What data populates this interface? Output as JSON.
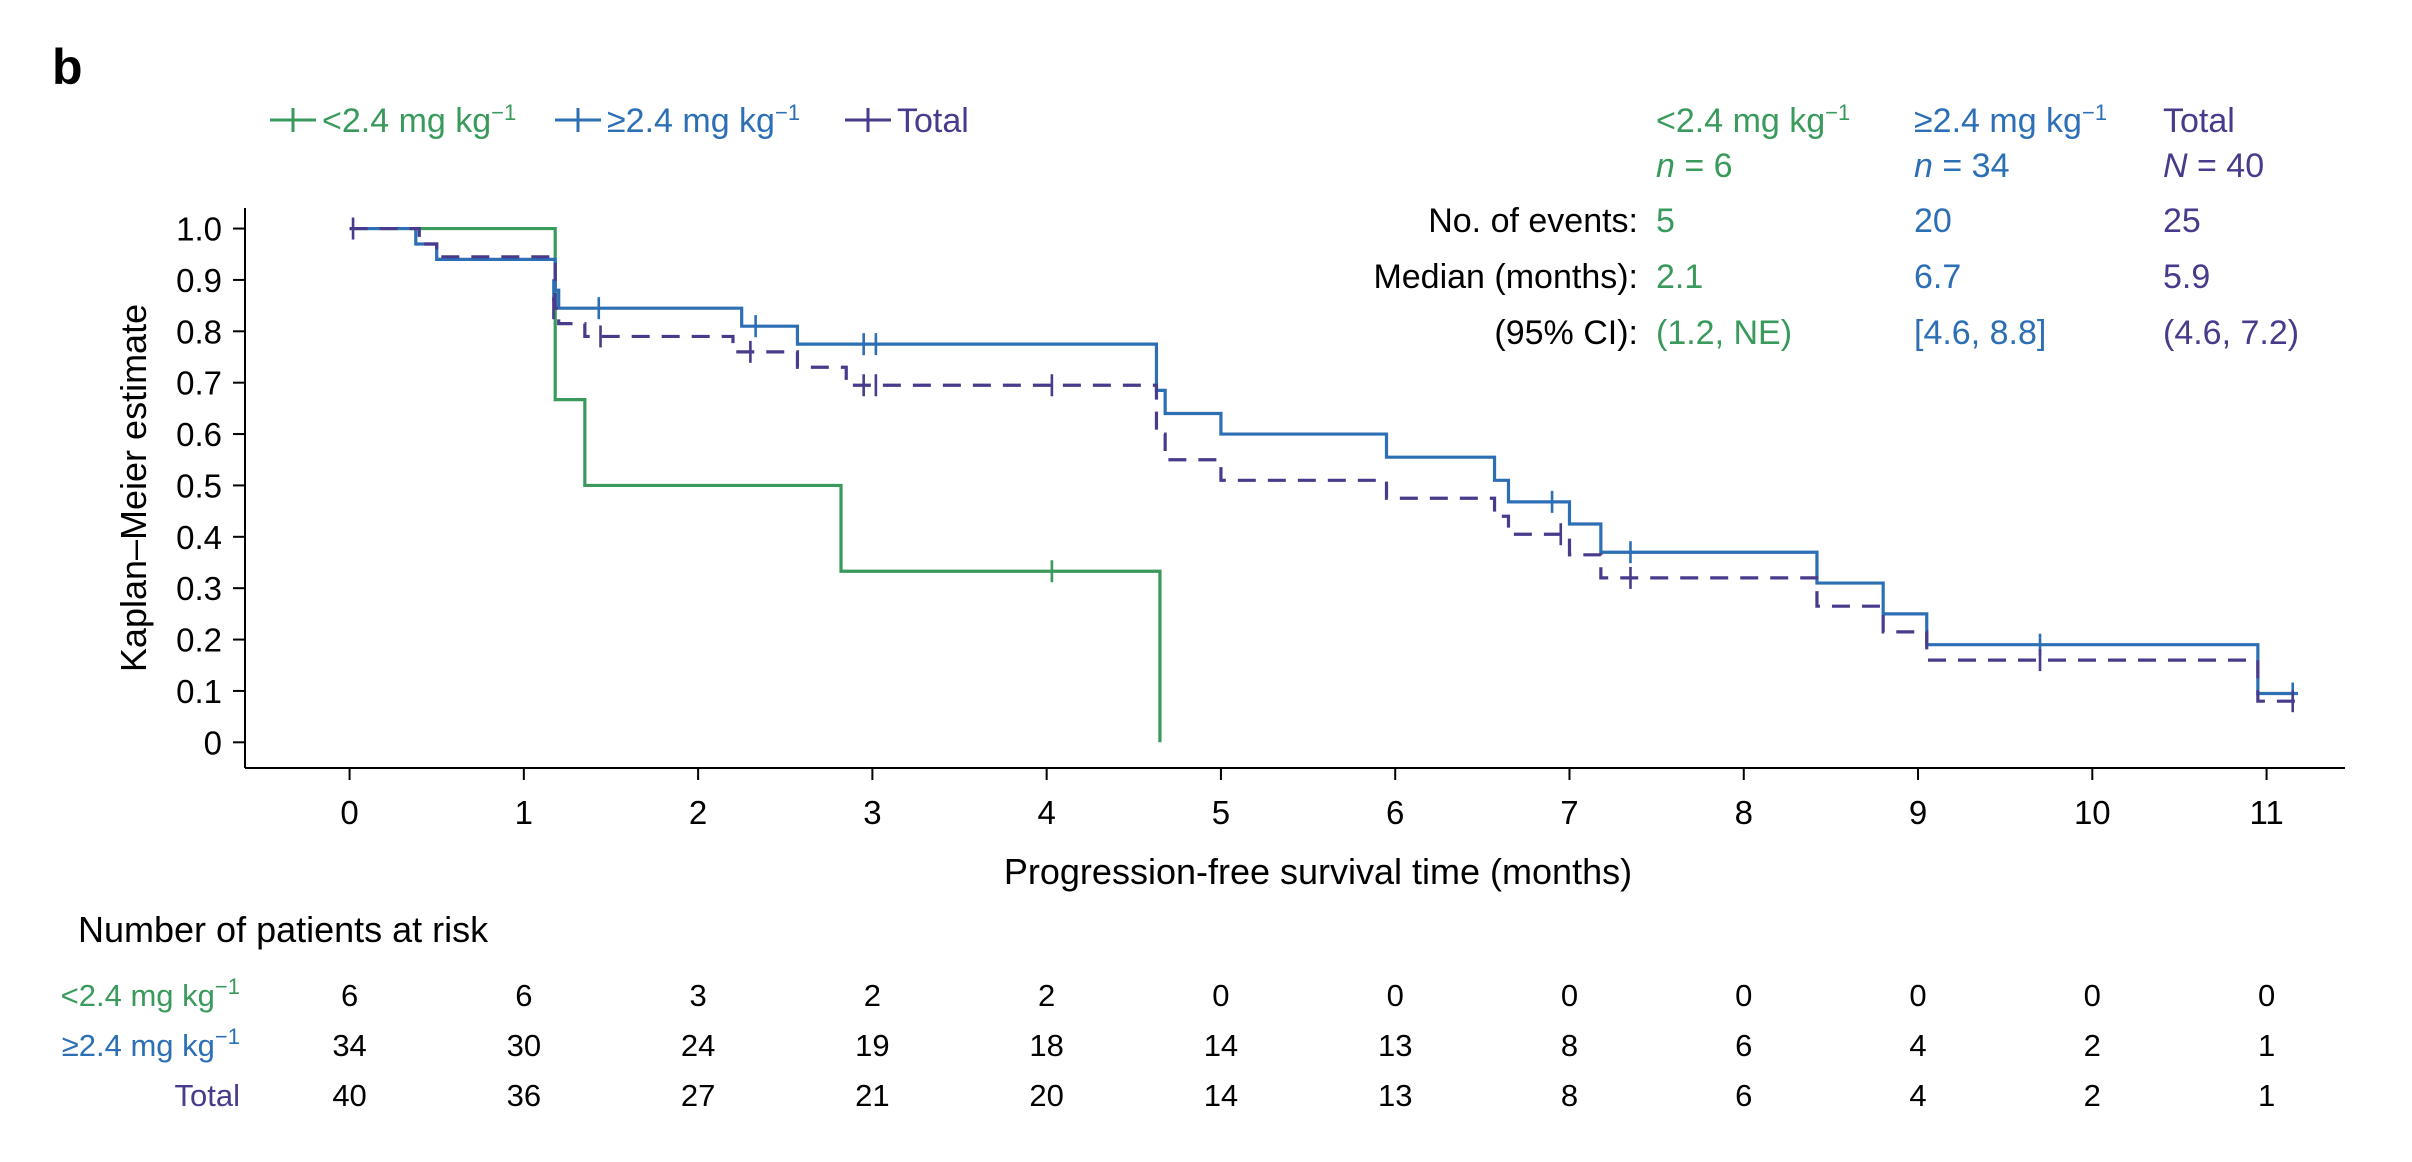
{
  "panel_label": "b",
  "colors": {
    "low": "#3a9a5c",
    "high": "#2c6fb5",
    "total": "#4a3a8c",
    "axis": "#000000"
  },
  "chart_data": {
    "type": "line",
    "subtype": "kaplan-meier",
    "xlabel": "Progression-free survival time (months)",
    "ylabel": "Kaplan–Meier estimate",
    "xlim": [
      -0.6,
      11.45
    ],
    "ylim": [
      -0.05,
      1.04
    ],
    "xticks": [
      0,
      1,
      2,
      3,
      4,
      5,
      6,
      7,
      8,
      9,
      10,
      11
    ],
    "yticks": [
      {
        "value": 1.0,
        "label": "1.0"
      },
      {
        "value": 0.9,
        "label": "0.9"
      },
      {
        "value": 0.8,
        "label": "0.8"
      },
      {
        "value": 0.7,
        "label": "0.7"
      },
      {
        "value": 0.6,
        "label": "0.6"
      },
      {
        "value": 0.5,
        "label": "0.5"
      },
      {
        "value": 0.4,
        "label": "0.4"
      },
      {
        "value": 0.3,
        "label": "0.3"
      },
      {
        "value": 0.2,
        "label": "0.2"
      },
      {
        "value": 0.1,
        "label": "0.1"
      },
      {
        "value": 0.0,
        "label": "0"
      }
    ],
    "grid": false,
    "legend": {
      "position": "top-left",
      "items": [
        {
          "key": "low",
          "label": "<2.4 mg kg",
          "sup": "−1"
        },
        {
          "key": "high",
          "label": "≥2.4 mg kg",
          "sup": "−1"
        },
        {
          "key": "total",
          "label": "Total",
          "sup": ""
        }
      ]
    },
    "series": [
      {
        "key": "low",
        "name": "<2.4 mg kg−1",
        "dashed": false,
        "steps": [
          {
            "x": 0,
            "y": 1.0
          },
          {
            "x": 1.18,
            "y": 0.667
          },
          {
            "x": 1.35,
            "y": 0.5
          },
          {
            "x": 2.82,
            "y": 0.333
          },
          {
            "x": 4.65,
            "y": 0.0
          }
        ],
        "end_x": 4.65,
        "censors": [
          {
            "x": 4.03,
            "y": 0.333
          }
        ]
      },
      {
        "key": "high",
        "name": "≥2.4 mg kg−1",
        "dashed": false,
        "steps": [
          {
            "x": 0,
            "y": 1.0
          },
          {
            "x": 0.38,
            "y": 0.97
          },
          {
            "x": 0.5,
            "y": 0.94
          },
          {
            "x": 1.18,
            "y": 0.88
          },
          {
            "x": 1.2,
            "y": 0.845
          },
          {
            "x": 2.25,
            "y": 0.81
          },
          {
            "x": 2.57,
            "y": 0.775
          },
          {
            "x": 4.63,
            "y": 0.685
          },
          {
            "x": 4.68,
            "y": 0.64
          },
          {
            "x": 5.0,
            "y": 0.6
          },
          {
            "x": 5.95,
            "y": 0.555
          },
          {
            "x": 6.57,
            "y": 0.51
          },
          {
            "x": 6.65,
            "y": 0.468
          },
          {
            "x": 7.0,
            "y": 0.425
          },
          {
            "x": 7.18,
            "y": 0.37
          },
          {
            "x": 8.42,
            "y": 0.31
          },
          {
            "x": 8.8,
            "y": 0.25
          },
          {
            "x": 9.05,
            "y": 0.19
          },
          {
            "x": 10.95,
            "y": 0.095
          }
        ],
        "end_x": 11.18,
        "censors": [
          {
            "x": 1.17,
            "y": 0.88
          },
          {
            "x": 1.43,
            "y": 0.845
          },
          {
            "x": 2.33,
            "y": 0.81
          },
          {
            "x": 2.95,
            "y": 0.775
          },
          {
            "x": 3.02,
            "y": 0.775
          },
          {
            "x": 6.9,
            "y": 0.468
          },
          {
            "x": 7.35,
            "y": 0.37
          },
          {
            "x": 9.7,
            "y": 0.19
          },
          {
            "x": 11.15,
            "y": 0.095
          }
        ]
      },
      {
        "key": "total",
        "name": "Total",
        "dashed": true,
        "steps": [
          {
            "x": 0,
            "y": 1.0
          },
          {
            "x": 0.4,
            "y": 0.97
          },
          {
            "x": 0.5,
            "y": 0.945
          },
          {
            "x": 1.18,
            "y": 0.845
          },
          {
            "x": 1.2,
            "y": 0.815
          },
          {
            "x": 1.35,
            "y": 0.79
          },
          {
            "x": 2.2,
            "y": 0.76
          },
          {
            "x": 2.57,
            "y": 0.73
          },
          {
            "x": 2.85,
            "y": 0.695
          },
          {
            "x": 4.63,
            "y": 0.6
          },
          {
            "x": 4.68,
            "y": 0.55
          },
          {
            "x": 5.0,
            "y": 0.51
          },
          {
            "x": 5.95,
            "y": 0.475
          },
          {
            "x": 6.57,
            "y": 0.44
          },
          {
            "x": 6.65,
            "y": 0.405
          },
          {
            "x": 7.0,
            "y": 0.365
          },
          {
            "x": 7.18,
            "y": 0.32
          },
          {
            "x": 8.42,
            "y": 0.265
          },
          {
            "x": 8.8,
            "y": 0.215
          },
          {
            "x": 9.05,
            "y": 0.16
          },
          {
            "x": 10.95,
            "y": 0.08
          }
        ],
        "end_x": 11.2,
        "censors": [
          {
            "x": 0.02,
            "y": 1.0
          },
          {
            "x": 1.17,
            "y": 0.845
          },
          {
            "x": 1.44,
            "y": 0.79
          },
          {
            "x": 2.3,
            "y": 0.76
          },
          {
            "x": 2.95,
            "y": 0.695
          },
          {
            "x": 3.02,
            "y": 0.695
          },
          {
            "x": 4.03,
            "y": 0.695
          },
          {
            "x": 6.95,
            "y": 0.405
          },
          {
            "x": 7.35,
            "y": 0.32
          },
          {
            "x": 9.7,
            "y": 0.16
          },
          {
            "x": 11.15,
            "y": 0.08
          }
        ]
      }
    ],
    "summary": {
      "row_labels": [
        "No. of events:",
        "Median (months):",
        "(95% CI):"
      ],
      "columns": [
        {
          "key": "low",
          "header": "<2.4 mg kg",
          "sup": "−1",
          "n_italic": "n",
          "n_value": " = 6",
          "values": [
            "5",
            "2.1",
            "(1.2, NE)"
          ]
        },
        {
          "key": "high",
          "header": "≥2.4 mg kg",
          "sup": "−1",
          "n_italic": "n",
          "n_value": " = 34",
          "values": [
            "20",
            "6.7",
            "[4.6, 8.8]"
          ]
        },
        {
          "key": "total",
          "header": "Total",
          "sup": "",
          "n_italic": "N",
          "n_value": " = 40",
          "values": [
            "25",
            "5.9",
            "(4.6, 7.2)"
          ]
        }
      ]
    },
    "risk_table": {
      "title": "Number of patients at risk",
      "rows": [
        {
          "key": "low",
          "label": "<2.4 mg kg",
          "sup": "−1",
          "values": [
            6,
            6,
            3,
            2,
            2,
            0,
            0,
            0,
            0,
            0,
            0,
            0
          ]
        },
        {
          "key": "high",
          "label": "≥2.4 mg kg",
          "sup": "−1",
          "values": [
            34,
            30,
            24,
            19,
            18,
            14,
            13,
            8,
            6,
            4,
            2,
            1
          ]
        },
        {
          "key": "total",
          "label": "Total",
          "sup": "",
          "values": [
            40,
            36,
            27,
            21,
            20,
            14,
            13,
            8,
            6,
            4,
            2,
            1
          ]
        }
      ]
    }
  }
}
